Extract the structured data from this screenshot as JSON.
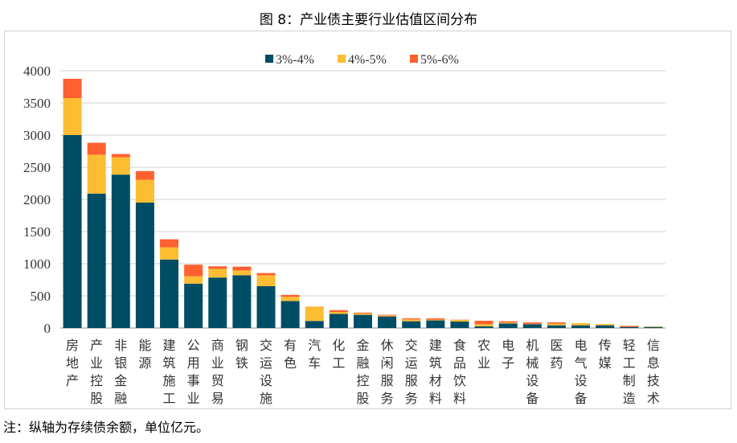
{
  "title": "图 8：产业债主要行业估值区间分布",
  "note": "注：纵轴为存续债余额，单位亿元。",
  "colors": {
    "3%-4%": "#004d66",
    "4%-5%": "#fcbd33",
    "5%-6%": "#ff6030",
    "grid": "#d9d9d9"
  },
  "chart_data": {
    "type": "bar",
    "stacked": true,
    "title": "",
    "xlabel": "",
    "ylabel": "",
    "ylim": [
      0,
      4000
    ],
    "yticks": [
      0,
      500,
      1000,
      1500,
      2000,
      2500,
      3000,
      3500,
      4000
    ],
    "grid": true,
    "legend_position": "top",
    "categories": [
      "房地产",
      "产业控股",
      "非银金融",
      "能源",
      "建筑施工",
      "公用事业",
      "商业贸易",
      "钢铁",
      "交运设施",
      "有色",
      "汽车",
      "化工",
      "金融控股",
      "休闲服务",
      "交运服务",
      "建筑材料",
      "食品饮料",
      "农业",
      "电子",
      "机械设备",
      "医药",
      "电气设备",
      "传媒",
      "轻工制造",
      "信息技术"
    ],
    "series": [
      {
        "name": "3%-4%",
        "values": [
          3000,
          2090,
          2385,
          1950,
          1065,
          690,
          785,
          820,
          650,
          420,
          110,
          220,
          205,
          180,
          105,
          118,
          100,
          25,
          70,
          60,
          42,
          42,
          42,
          17,
          17
        ]
      },
      {
        "name": "4%-5%",
        "values": [
          575,
          605,
          270,
          355,
          190,
          115,
          135,
          75,
          170,
          65,
          220,
          30,
          22,
          17,
          30,
          12,
          26,
          34,
          14,
          5,
          25,
          34,
          21,
          0,
          8
        ]
      },
      {
        "name": "5%-6%",
        "values": [
          300,
          185,
          50,
          135,
          125,
          180,
          40,
          60,
          35,
          30,
          3,
          28,
          13,
          9,
          17,
          21,
          4,
          54,
          21,
          23,
          21,
          0,
          0,
          17,
          0
        ]
      }
    ]
  }
}
